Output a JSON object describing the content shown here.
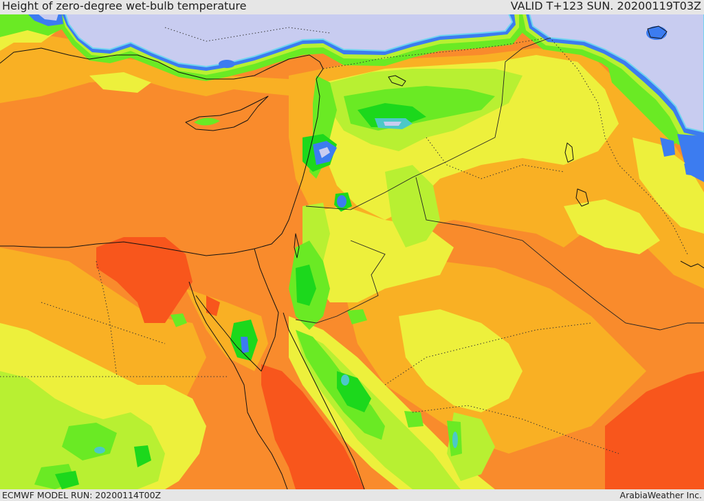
{
  "header": {
    "title": "Height of zero-degree wet-bulb temperature",
    "valid": "VALID T+123 SUN. 20200119T03Z"
  },
  "footer": {
    "model_run": "ECMWF MODEL RUN: 20200114T00Z",
    "credit": "ArabiaWeather Inc."
  },
  "palette": {
    "base": "#f98b2c",
    "amber": "#f9b024",
    "yellow": "#edf03c",
    "lime": "#b8f032",
    "green": "#6aea24",
    "bright": "#1cd81c",
    "teal": "#4cc8c8",
    "blue": "#3c7cf0",
    "cyan": "#70d4f0",
    "lavender": "#c8ccf0",
    "red": "#f8561c",
    "bar": "#e6e6e6"
  }
}
